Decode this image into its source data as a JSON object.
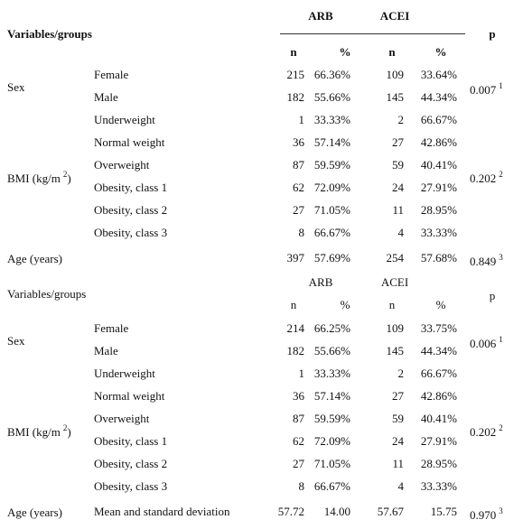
{
  "tables": [
    {
      "header": {
        "variables": "Variables/groups",
        "groups": [
          "ARB",
          "ACEI"
        ],
        "sub": [
          "n",
          "%",
          "n",
          "%"
        ],
        "p": "p"
      },
      "sections": [
        {
          "label": {
            "text": "Sex"
          },
          "p": "0.007",
          "p_note": "1",
          "rows": [
            {
              "name": "Female",
              "cells": [
                "215",
                "66.36%",
                "109",
                "33.64%"
              ]
            },
            {
              "name": "Male",
              "cells": [
                "182",
                "55.66%",
                "145",
                "44.34%"
              ]
            }
          ]
        },
        {
          "label": {
            "text": "BMI (kg/m",
            "sup": "2",
            "end": ")"
          },
          "p": "0.202",
          "p_note": "2",
          "rows": [
            {
              "name": "Underweight",
              "cells": [
                "1",
                "33.33%",
                "2",
                "66.67%"
              ]
            },
            {
              "name": "Normal weight",
              "cells": [
                "36",
                "57.14%",
                "27",
                "42.86%"
              ]
            },
            {
              "name": "Overweight",
              "cells": [
                "87",
                "59.59%",
                "59",
                "40.41%"
              ]
            },
            {
              "name": "Obesity, class 1",
              "cells": [
                "62",
                "72.09%",
                "24",
                "27.91%"
              ]
            },
            {
              "name": "Obesity, class 2",
              "cells": [
                "27",
                "71.05%",
                "11",
                "28.95%"
              ]
            },
            {
              "name": "Obesity, class 3",
              "cells": [
                "8",
                "66.67%",
                "4",
                "33.33%"
              ]
            }
          ]
        },
        {
          "label": {
            "text": "Age (years)"
          },
          "p": "0.849",
          "p_note": "3",
          "rows": [
            {
              "cells": [
                "397",
                "57.69%",
                "254",
                "57.68%"
              ]
            }
          ]
        }
      ]
    },
    {
      "header": {
        "variables": "Variables/groups",
        "groups": [
          "ARB",
          "ACEI"
        ],
        "sub": [
          "n",
          "%",
          "n",
          "%"
        ],
        "p": "p"
      },
      "sections": [
        {
          "label": {
            "text": "Sex"
          },
          "p": "0.006",
          "p_note": "1",
          "rows": [
            {
              "name": "Female",
              "cells": [
                "214",
                "66.25%",
                "109",
                "33.75%"
              ]
            },
            {
              "name": "Male",
              "cells": [
                "182",
                "55.66%",
                "145",
                "44.34%"
              ]
            }
          ]
        },
        {
          "label": {
            "text": "BMI (kg/m",
            "sup": "2",
            "end": ")"
          },
          "p": "0.202",
          "p_note": "2",
          "rows": [
            {
              "name": "Underweight",
              "cells": [
                "1",
                "33.33%",
                "2",
                "66.67%"
              ]
            },
            {
              "name": "Normal weight",
              "cells": [
                "36",
                "57.14%",
                "27",
                "42.86%"
              ]
            },
            {
              "name": "Overweight",
              "cells": [
                "87",
                "59.59%",
                "59",
                "40.41%"
              ]
            },
            {
              "name": "Obesity, class 1",
              "cells": [
                "62",
                "72.09%",
                "24",
                "27.91%"
              ]
            },
            {
              "name": "Obesity, class 2",
              "cells": [
                "27",
                "71.05%",
                "11",
                "28.95%"
              ]
            },
            {
              "name": "Obesity, class 3",
              "cells": [
                "8",
                "66.67%",
                "4",
                "33.33%"
              ]
            }
          ]
        },
        {
          "label": {
            "text": "Age (years)"
          },
          "p": "0.970",
          "p_note": "3",
          "rows": [
            {
              "name": "Mean and standard deviation",
              "cells": [
                "57.72",
                "14.00",
                "57.67",
                "15.75"
              ]
            }
          ]
        }
      ]
    }
  ]
}
